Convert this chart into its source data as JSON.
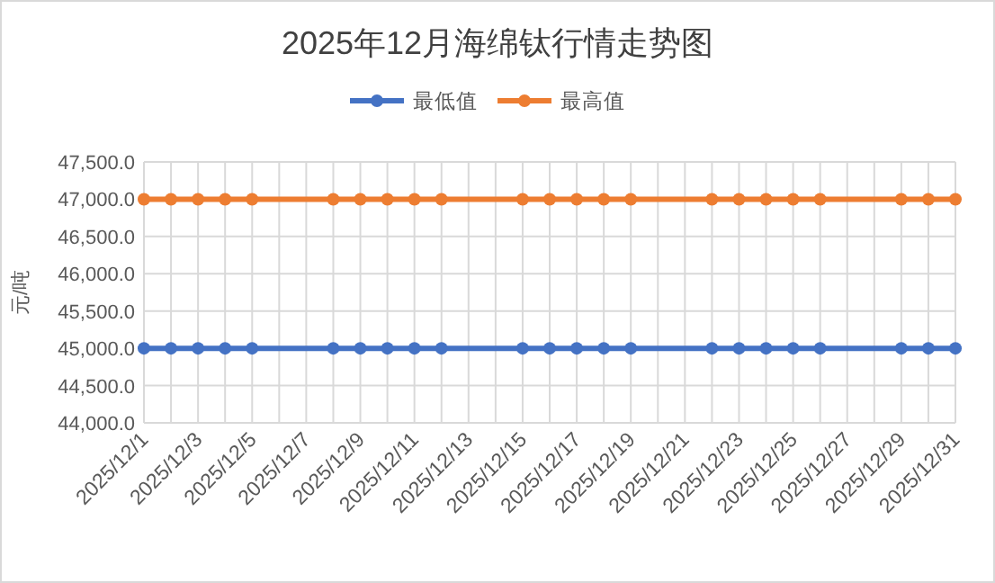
{
  "chart_data": {
    "type": "line",
    "title": "2025年12月海绵钛行情走势图",
    "ylabel": "元/吨",
    "x": [
      "2025-12-01",
      "2025-12-02",
      "2025-12-03",
      "2025-12-04",
      "2025-12-05",
      "2025-12-08",
      "2025-12-09",
      "2025-12-10",
      "2025-12-11",
      "2025-12-12",
      "2025-12-15",
      "2025-12-16",
      "2025-12-17",
      "2025-12-18",
      "2025-12-19",
      "2025-12-22",
      "2025-12-23",
      "2025-12-24",
      "2025-12-25",
      "2025-12-26",
      "2025-12-29",
      "2025-12-30",
      "2025-12-31"
    ],
    "series": [
      {
        "name": "最低值",
        "color": "#4472c4",
        "values": [
          45000,
          45000,
          45000,
          45000,
          45000,
          45000,
          45000,
          45000,
          45000,
          45000,
          45000,
          45000,
          45000,
          45000,
          45000,
          45000,
          45000,
          45000,
          45000,
          45000,
          45000,
          45000,
          45000
        ]
      },
      {
        "name": "最高值",
        "color": "#ed7d31",
        "values": [
          47000,
          47000,
          47000,
          47000,
          47000,
          47000,
          47000,
          47000,
          47000,
          47000,
          47000,
          47000,
          47000,
          47000,
          47000,
          47000,
          47000,
          47000,
          47000,
          47000,
          47000,
          47000,
          47000
        ]
      }
    ],
    "xlim": [
      "2025-12-01",
      "2025-12-31"
    ],
    "xticks": [
      {
        "value": "2025-12-01",
        "label": "2025/12/1"
      },
      {
        "value": "2025-12-02",
        "label": null
      },
      {
        "value": "2025-12-03",
        "label": "2025/12/3"
      },
      {
        "value": "2025-12-04",
        "label": null
      },
      {
        "value": "2025-12-05",
        "label": "2025/12/5"
      },
      {
        "value": "2025-12-06",
        "label": null
      },
      {
        "value": "2025-12-07",
        "label": "2025/12/7"
      },
      {
        "value": "2025-12-08",
        "label": null
      },
      {
        "value": "2025-12-09",
        "label": "2025/12/9"
      },
      {
        "value": "2025-12-10",
        "label": null
      },
      {
        "value": "2025-12-11",
        "label": "2025/12/11"
      },
      {
        "value": "2025-12-12",
        "label": null
      },
      {
        "value": "2025-12-13",
        "label": "2025/12/13"
      },
      {
        "value": "2025-12-14",
        "label": null
      },
      {
        "value": "2025-12-15",
        "label": "2025/12/15"
      },
      {
        "value": "2025-12-16",
        "label": null
      },
      {
        "value": "2025-12-17",
        "label": "2025/12/17"
      },
      {
        "value": "2025-12-18",
        "label": null
      },
      {
        "value": "2025-12-19",
        "label": "2025/12/19"
      },
      {
        "value": "2025-12-20",
        "label": null
      },
      {
        "value": "2025-12-21",
        "label": "2025/12/21"
      },
      {
        "value": "2025-12-22",
        "label": null
      },
      {
        "value": "2025-12-23",
        "label": "2025/12/23"
      },
      {
        "value": "2025-12-24",
        "label": null
      },
      {
        "value": "2025-12-25",
        "label": "2025/12/25"
      },
      {
        "value": "2025-12-26",
        "label": null
      },
      {
        "value": "2025-12-27",
        "label": "2025/12/27"
      },
      {
        "value": "2025-12-28",
        "label": null
      },
      {
        "value": "2025-12-29",
        "label": "2025/12/29"
      },
      {
        "value": "2025-12-30",
        "label": null
      },
      {
        "value": "2025-12-31",
        "label": "2025/12/31"
      }
    ],
    "ylim": [
      44000,
      47500
    ],
    "yticks": [
      {
        "value": 44000,
        "label": "44,000.0"
      },
      {
        "value": 44500,
        "label": "44,500.0"
      },
      {
        "value": 45000,
        "label": "45,000.0"
      },
      {
        "value": 45500,
        "label": "45,500.0"
      },
      {
        "value": 46000,
        "label": "46,000.0"
      },
      {
        "value": 46500,
        "label": "46,500.0"
      },
      {
        "value": 47000,
        "label": "47,000.0"
      },
      {
        "value": 47500,
        "label": "47,500.0"
      }
    ],
    "grid": true,
    "legend": "top",
    "marker": "circle",
    "line_style": "solid"
  }
}
